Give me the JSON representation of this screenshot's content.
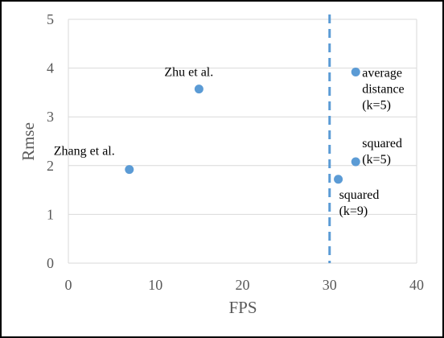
{
  "chart_data": {
    "type": "scatter",
    "title": "",
    "xlabel": "FPS",
    "ylabel": "Rmse",
    "xlim": [
      0,
      40
    ],
    "ylim": [
      0,
      5
    ],
    "x_ticks": [
      "0",
      "10",
      "20",
      "30",
      "40"
    ],
    "y_ticks": [
      "0",
      "1",
      "2",
      "3",
      "4",
      "5"
    ],
    "grid": true,
    "point_color": "#5B9BD5",
    "points": [
      {
        "x": 7,
        "y": 1.92,
        "label": [
          "Zhang  et al."
        ]
      },
      {
        "x": 15,
        "y": 3.57,
        "label": [
          "Zhu et al."
        ]
      },
      {
        "x": 33,
        "y": 3.92,
        "label": [
          "average",
          "distance",
          "(k=5)"
        ]
      },
      {
        "x": 33,
        "y": 2.08,
        "label": [
          "squared",
          "(k=5)"
        ]
      },
      {
        "x": 31,
        "y": 1.72,
        "label": [
          "squared",
          "(k=9)"
        ]
      }
    ],
    "reference_line": {
      "x": 30,
      "style": "dashed",
      "color": "#5B9BD5"
    }
  }
}
